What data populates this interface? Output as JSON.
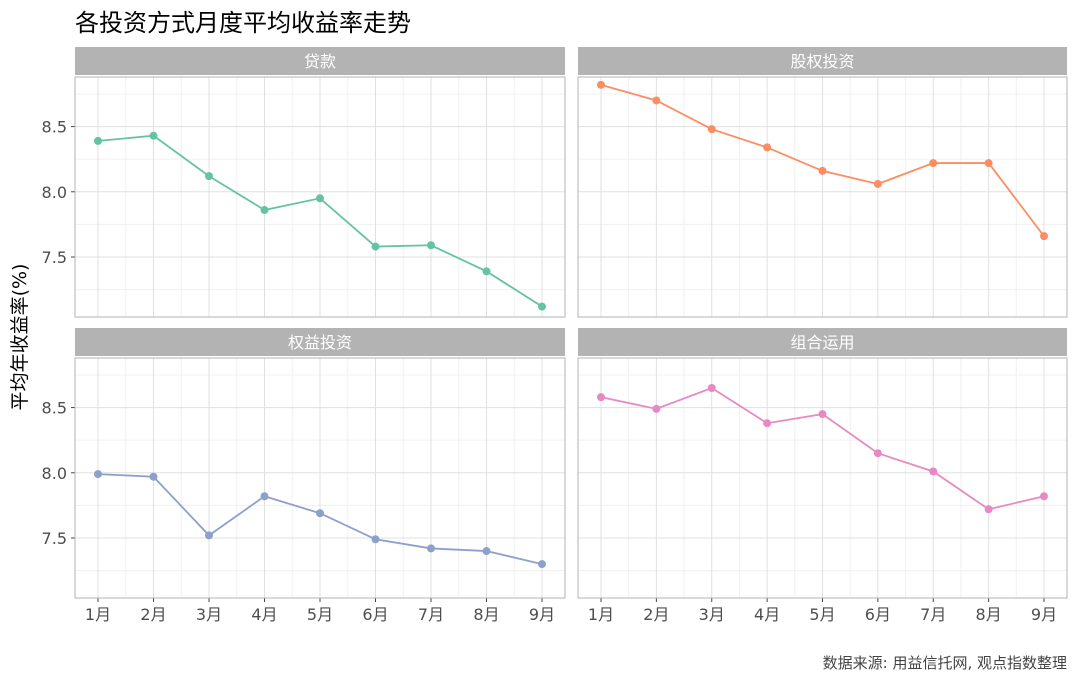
{
  "chart_data": {
    "type": "line",
    "title": "各投资方式月度平均收益率走势",
    "ylabel": "平均年收益率(%)",
    "xlabel": "",
    "caption": "数据来源: 用益信托网, 观点指数整理",
    "categories": [
      "1月",
      "2月",
      "3月",
      "4月",
      "5月",
      "6月",
      "7月",
      "8月",
      "9月"
    ],
    "ylim": [
      7.04,
      8.88
    ],
    "yticks": [
      7.5,
      8.0,
      8.5
    ],
    "ytick_labels": [
      "7.5",
      "8.0",
      "8.5"
    ],
    "grid": true,
    "facets": [
      {
        "name": "贷款",
        "color": "#66c2a5",
        "values": [
          8.39,
          8.43,
          8.12,
          7.86,
          7.95,
          7.58,
          7.59,
          7.39,
          7.12
        ]
      },
      {
        "name": "股权投资",
        "color": "#fc8d62",
        "values": [
          8.82,
          8.7,
          8.48,
          8.34,
          8.16,
          8.06,
          8.22,
          8.22,
          7.66
        ]
      },
      {
        "name": "权益投资",
        "color": "#8da0cb",
        "values": [
          7.99,
          7.97,
          7.52,
          7.82,
          7.69,
          7.49,
          7.42,
          7.4,
          7.3
        ]
      },
      {
        "name": "组合运用",
        "color": "#e78ac3",
        "values": [
          8.58,
          8.49,
          8.65,
          8.38,
          8.45,
          8.15,
          8.01,
          7.72,
          7.82
        ]
      }
    ]
  }
}
